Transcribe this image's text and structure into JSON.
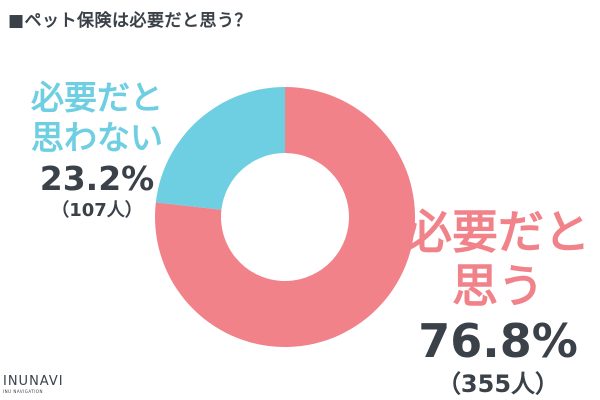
{
  "chart_data": {
    "type": "pie",
    "title": "■ペット保険は必要だと思う？",
    "slices": [
      {
        "label_lines": [
          "必要だと",
          "思う"
        ],
        "percent_label": "76.8%",
        "count_label": "（355人）",
        "value": 76.8,
        "count": 355,
        "color": "#f1828a"
      },
      {
        "label_lines": [
          "必要だと",
          "思わない"
        ],
        "percent_label": "23.2%",
        "count_label": "（107人）",
        "value": 23.2,
        "count": 107,
        "color": "#6ecfe2"
      }
    ]
  },
  "logo": {
    "text": "INUNAVI",
    "subtext": "INU NAVIGATION"
  }
}
